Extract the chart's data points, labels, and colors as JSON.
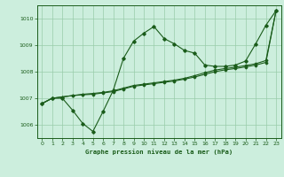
{
  "title": "Graphe pression niveau de la mer (hPa)",
  "background_color": "#cceedd",
  "plot_bg_color": "#cceedd",
  "grid_color": "#99ccaa",
  "line_color": "#1a5c1a",
  "xlim": [
    -0.5,
    23.5
  ],
  "ylim": [
    1005.5,
    1010.5
  ],
  "yticks": [
    1006,
    1007,
    1008,
    1009,
    1010
  ],
  "xticks": [
    0,
    1,
    2,
    3,
    4,
    5,
    6,
    7,
    8,
    9,
    10,
    11,
    12,
    13,
    14,
    15,
    16,
    17,
    18,
    19,
    20,
    21,
    22,
    23
  ],
  "series1_x": [
    0,
    1,
    2,
    3,
    4,
    5,
    6,
    7,
    8,
    9,
    10,
    11,
    12,
    13,
    14,
    15,
    16,
    17,
    18,
    19,
    20,
    21,
    22,
    23
  ],
  "series1_y": [
    1006.8,
    1007.0,
    1007.0,
    1006.55,
    1006.05,
    1005.75,
    1006.5,
    1007.3,
    1008.5,
    1009.15,
    1009.45,
    1009.7,
    1009.25,
    1009.05,
    1008.8,
    1008.7,
    1008.25,
    1008.2,
    1008.2,
    1008.25,
    1008.4,
    1009.05,
    1009.75,
    1010.3
  ],
  "series2_x": [
    0,
    1,
    2,
    3,
    4,
    5,
    6,
    7,
    8,
    9,
    10,
    11,
    12,
    13,
    14,
    15,
    16,
    17,
    18,
    19,
    20,
    21,
    22,
    23
  ],
  "series2_y": [
    1006.8,
    1007.0,
    1007.05,
    1007.1,
    1007.13,
    1007.15,
    1007.2,
    1007.25,
    1007.35,
    1007.45,
    1007.5,
    1007.55,
    1007.6,
    1007.65,
    1007.72,
    1007.8,
    1007.9,
    1008.0,
    1008.07,
    1008.12,
    1008.18,
    1008.25,
    1008.35,
    1010.3
  ],
  "series3_x": [
    0,
    1,
    2,
    3,
    4,
    5,
    6,
    7,
    8,
    9,
    10,
    11,
    12,
    13,
    14,
    15,
    16,
    17,
    18,
    19,
    20,
    21,
    22,
    23
  ],
  "series3_y": [
    1006.8,
    1007.0,
    1007.05,
    1007.1,
    1007.15,
    1007.18,
    1007.22,
    1007.28,
    1007.38,
    1007.48,
    1007.53,
    1007.58,
    1007.63,
    1007.68,
    1007.75,
    1007.85,
    1007.96,
    1008.06,
    1008.12,
    1008.17,
    1008.23,
    1008.3,
    1008.42,
    1010.3
  ]
}
